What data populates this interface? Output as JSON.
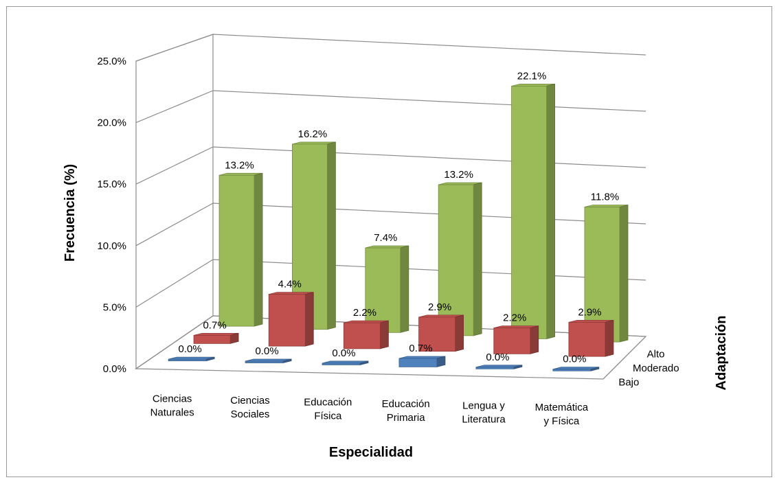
{
  "chart_data": {
    "type": "bar",
    "style": "3d-clustered-depth",
    "categories": [
      "Ciencias Naturales",
      "Ciencias Sociales",
      "Educación Física",
      "Educación Primaria",
      "Lengua y Literatura",
      "Matemática y Física"
    ],
    "category_lines": [
      [
        "Ciencias",
        "Naturales"
      ],
      [
        "Ciencias",
        "Sociales"
      ],
      [
        "Educación",
        "Física"
      ],
      [
        "Educación",
        "Primaria"
      ],
      [
        "Lengua y",
        "Literatura"
      ],
      [
        "Matemática",
        "y Física"
      ]
    ],
    "series": [
      {
        "name": "Bajo",
        "values": [
          0.0,
          0.0,
          0.0,
          0.7,
          0.0,
          0.0
        ],
        "labels": [
          "0.0%",
          "0.0%",
          "0.0%",
          "0.7%",
          "0.0%",
          "0.0%"
        ],
        "color": "#4f81bd"
      },
      {
        "name": "Moderado",
        "values": [
          0.7,
          4.4,
          2.2,
          2.9,
          2.2,
          2.9
        ],
        "labels": [
          "0.7%",
          "4.4%",
          "2.2%",
          "2.9%",
          "2.2%",
          "2.9%"
        ],
        "color": "#c0504d"
      },
      {
        "name": "Alto",
        "values": [
          13.2,
          16.2,
          7.4,
          13.2,
          22.1,
          11.8
        ],
        "labels": [
          "13.2%",
          "16.2%",
          "7.4%",
          "13.2%",
          "22.1%",
          "11.8%"
        ],
        "color": "#9bbb59"
      }
    ],
    "ylim": [
      0,
      25
    ],
    "yticks": [
      "0.0%",
      "5.0%",
      "10.0%",
      "15.0%",
      "20.0%",
      "25.0%"
    ],
    "xlabel": "Especialidad",
    "ylabel": "Frecuencia (%)",
    "zlabel": "Adaptación",
    "grid": true
  }
}
